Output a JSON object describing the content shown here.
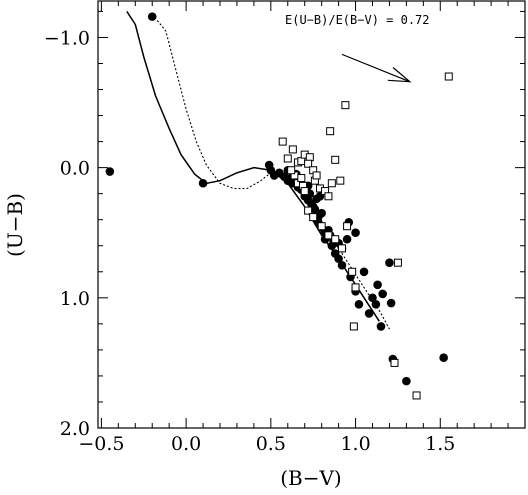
{
  "chart_data": {
    "type": "scatter",
    "title": "",
    "xlabel": "(B−V)",
    "ylabel": "(U−B)",
    "xlim": [
      -0.52,
      2.0
    ],
    "ylim": [
      2.0,
      -1.28
    ],
    "y_inverted": true,
    "grid": false,
    "x_ticks": [
      -0.5,
      0.0,
      0.5,
      1.0,
      1.5
    ],
    "x_tick_labels": [
      "−0.5",
      "0.0",
      "0.5",
      "1.0",
      "1.5"
    ],
    "y_ticks": [
      -1.0,
      0.0,
      1.0,
      2.0
    ],
    "y_tick_labels": [
      "−1.0",
      "0.0",
      "1.0",
      "2.0"
    ],
    "annotation": {
      "text": "E(U−B)/E(B−V) = 0.72",
      "arrow_from": [
        0.92,
        -0.87
      ],
      "arrow_to": [
        1.32,
        -0.66
      ]
    },
    "series": [
      {
        "marker": "filled-circle",
        "points": [
          [
            -0.45,
            0.03
          ],
          [
            -0.2,
            -1.16
          ],
          [
            0.1,
            0.12
          ],
          [
            0.49,
            -0.02
          ],
          [
            0.5,
            0.02
          ],
          [
            0.52,
            0.06
          ],
          [
            0.55,
            0.04
          ],
          [
            0.58,
            0.07
          ],
          [
            0.6,
            0.02
          ],
          [
            0.6,
            0.1
          ],
          [
            0.62,
            0.08
          ],
          [
            0.63,
            0.12
          ],
          [
            0.65,
            0.05
          ],
          [
            0.66,
            0.15
          ],
          [
            0.67,
            0.13
          ],
          [
            0.68,
            0.17
          ],
          [
            0.7,
            0.18
          ],
          [
            0.7,
            0.22
          ],
          [
            0.72,
            0.25
          ],
          [
            0.72,
            0.14
          ],
          [
            0.73,
            0.2
          ],
          [
            0.74,
            0.28
          ],
          [
            0.75,
            0.3
          ],
          [
            0.76,
            0.32
          ],
          [
            0.77,
            0.24
          ],
          [
            0.78,
            0.38
          ],
          [
            0.78,
            0.42
          ],
          [
            0.79,
            0.22
          ],
          [
            0.8,
            0.46
          ],
          [
            0.8,
            0.35
          ],
          [
            0.82,
            0.5
          ],
          [
            0.82,
            0.55
          ],
          [
            0.84,
            0.48
          ],
          [
            0.85,
            0.52
          ],
          [
            0.86,
            0.6
          ],
          [
            0.87,
            0.56
          ],
          [
            0.88,
            0.66
          ],
          [
            0.9,
            0.7
          ],
          [
            0.9,
            0.58
          ],
          [
            0.92,
            0.75
          ],
          [
            0.92,
            0.62
          ],
          [
            0.95,
            0.55
          ],
          [
            0.97,
            0.84
          ],
          [
            1.0,
            0.95
          ],
          [
            1.02,
            1.05
          ],
          [
            1.05,
            0.8
          ],
          [
            1.08,
            1.12
          ],
          [
            1.1,
            1.0
          ],
          [
            1.12,
            1.05
          ],
          [
            1.13,
            0.9
          ],
          [
            1.15,
            1.22
          ],
          [
            1.16,
            0.97
          ],
          [
            1.21,
            1.04
          ],
          [
            1.2,
            0.73
          ],
          [
            1.22,
            1.47
          ],
          [
            1.3,
            1.64
          ],
          [
            1.52,
            1.46
          ],
          [
            1.0,
            0.5
          ],
          [
            0.96,
            0.42
          ]
        ]
      },
      {
        "marker": "open-square",
        "points": [
          [
            0.57,
            -0.2
          ],
          [
            0.6,
            -0.07
          ],
          [
            0.63,
            -0.14
          ],
          [
            0.66,
            -0.04
          ],
          [
            0.68,
            -0.05
          ],
          [
            0.7,
            -0.1
          ],
          [
            0.73,
            -0.08
          ],
          [
            0.64,
            0.06
          ],
          [
            0.66,
            0.12
          ],
          [
            0.69,
            0.14
          ],
          [
            0.7,
            0.18
          ],
          [
            0.72,
            -0.03
          ],
          [
            0.75,
            0.02
          ],
          [
            0.76,
            0.1
          ],
          [
            0.77,
            0.06
          ],
          [
            0.79,
            0.16
          ],
          [
            0.82,
            0.18
          ],
          [
            0.84,
            0.22
          ],
          [
            0.86,
            0.12
          ],
          [
            0.88,
            -0.06
          ],
          [
            0.85,
            -0.28
          ],
          [
            0.91,
            0.1
          ],
          [
            0.72,
            0.33
          ],
          [
            0.75,
            0.38
          ],
          [
            0.8,
            0.45
          ],
          [
            0.84,
            0.52
          ],
          [
            0.88,
            0.55
          ],
          [
            0.92,
            0.62
          ],
          [
            0.95,
            0.45
          ],
          [
            0.98,
            0.8
          ],
          [
            1.0,
            0.92
          ],
          [
            0.94,
            -0.48
          ],
          [
            1.55,
            -0.7
          ],
          [
            1.25,
            0.73
          ],
          [
            0.99,
            1.22
          ],
          [
            1.23,
            1.5
          ],
          [
            1.36,
            1.75
          ],
          [
            0.62,
            0.02
          ],
          [
            0.68,
            0.08
          ]
        ]
      }
    ],
    "curves": [
      {
        "style": "solid",
        "points": [
          [
            -0.35,
            -1.2
          ],
          [
            -0.3,
            -1.1
          ],
          [
            -0.25,
            -0.85
          ],
          [
            -0.18,
            -0.55
          ],
          [
            -0.1,
            -0.3
          ],
          [
            -0.03,
            -0.1
          ],
          [
            0.05,
            0.05
          ],
          [
            0.12,
            0.12
          ],
          [
            0.2,
            0.1
          ],
          [
            0.3,
            0.04
          ],
          [
            0.4,
            0.0
          ],
          [
            0.5,
            0.02
          ],
          [
            0.6,
            0.12
          ],
          [
            0.7,
            0.3
          ],
          [
            0.8,
            0.52
          ],
          [
            0.9,
            0.7
          ],
          [
            1.0,
            0.9
          ],
          [
            1.1,
            1.1
          ],
          [
            1.14,
            1.18
          ]
        ]
      },
      {
        "style": "dotted",
        "points": [
          [
            -0.17,
            -1.13
          ],
          [
            -0.12,
            -1.05
          ],
          [
            -0.06,
            -0.75
          ],
          [
            0.0,
            -0.45
          ],
          [
            0.06,
            -0.2
          ],
          [
            0.12,
            -0.02
          ],
          [
            0.2,
            0.12
          ],
          [
            0.28,
            0.16
          ],
          [
            0.36,
            0.16
          ],
          [
            0.44,
            0.1
          ],
          [
            0.5,
            0.04
          ],
          [
            0.58,
            0.06
          ],
          [
            0.66,
            0.16
          ],
          [
            0.75,
            0.32
          ],
          [
            0.85,
            0.52
          ],
          [
            0.95,
            0.72
          ],
          [
            1.05,
            0.92
          ],
          [
            1.15,
            1.12
          ],
          [
            1.2,
            1.24
          ]
        ]
      }
    ]
  }
}
